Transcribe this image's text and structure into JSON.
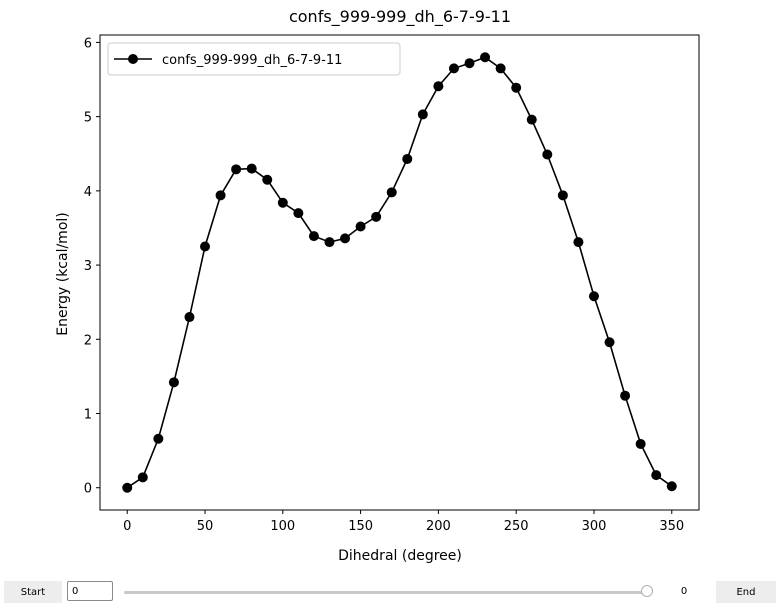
{
  "chart_data": {
    "type": "line",
    "title": "confs_999-999_dh_6-7-9-11",
    "xlabel": "Dihedral (degree)",
    "ylabel": "Energy (kcal/mol)",
    "xlim": [
      -17.5,
      367.5
    ],
    "ylim": [
      -0.3,
      6.1
    ],
    "xticks": [
      0,
      50,
      100,
      150,
      200,
      250,
      300,
      350
    ],
    "yticks": [
      0,
      1,
      2,
      3,
      4,
      5,
      6
    ],
    "grid": false,
    "legend_position": "top-left",
    "series": [
      {
        "name": "confs_999-999_dh_6-7-9-11",
        "color": "#000000",
        "marker": "circle",
        "x": [
          0,
          10,
          20,
          30,
          40,
          50,
          60,
          70,
          80,
          90,
          100,
          110,
          120,
          130,
          140,
          150,
          160,
          170,
          180,
          190,
          200,
          210,
          220,
          230,
          240,
          250,
          260,
          270,
          280,
          290,
          300,
          310,
          320,
          330,
          340,
          350
        ],
        "y": [
          0.0,
          0.14,
          0.66,
          1.42,
          2.3,
          3.25,
          3.94,
          4.29,
          4.3,
          4.15,
          3.84,
          3.7,
          3.39,
          3.31,
          3.36,
          3.52,
          3.65,
          3.98,
          4.43,
          5.03,
          5.41,
          5.65,
          5.72,
          5.8,
          5.65,
          5.39,
          4.96,
          4.49,
          3.94,
          3.31,
          2.58,
          1.96,
          1.24,
          0.59,
          0.17,
          0.02
        ]
      }
    ]
  },
  "controls": {
    "start_label": "Start",
    "end_label": "End",
    "start_value": "0",
    "slider_value": "0",
    "slider_fraction": 1.0
  }
}
